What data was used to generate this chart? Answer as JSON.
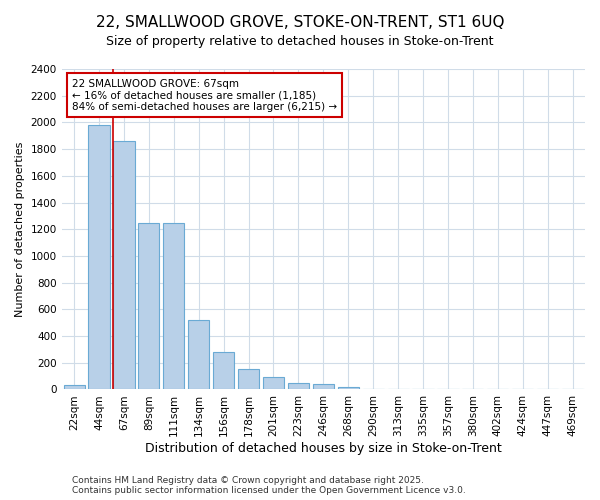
{
  "title": "22, SMALLWOOD GROVE, STOKE-ON-TRENT, ST1 6UQ",
  "subtitle": "Size of property relative to detached houses in Stoke-on-Trent",
  "xlabel": "Distribution of detached houses by size in Stoke-on-Trent",
  "ylabel": "Number of detached properties",
  "categories": [
    "22sqm",
    "44sqm",
    "67sqm",
    "89sqm",
    "111sqm",
    "134sqm",
    "156sqm",
    "178sqm",
    "201sqm",
    "223sqm",
    "246sqm",
    "268sqm",
    "290sqm",
    "313sqm",
    "335sqm",
    "357sqm",
    "380sqm",
    "402sqm",
    "424sqm",
    "447sqm",
    "469sqm"
  ],
  "values": [
    30,
    1980,
    1860,
    1250,
    1250,
    520,
    280,
    150,
    90,
    50,
    40,
    20,
    0,
    0,
    0,
    0,
    0,
    0,
    0,
    0,
    0
  ],
  "bar_color": "#b8d0e8",
  "bar_edge_color": "#6aaad4",
  "highlight_bar_index": 2,
  "highlight_line_color": "#cc0000",
  "annotation_text": "22 SMALLWOOD GROVE: 67sqm\n← 16% of detached houses are smaller (1,185)\n84% of semi-detached houses are larger (6,215) →",
  "annotation_box_color": "#ffffff",
  "annotation_box_edge_color": "#cc0000",
  "ylim": [
    0,
    2400
  ],
  "yticks": [
    0,
    200,
    400,
    600,
    800,
    1000,
    1200,
    1400,
    1600,
    1800,
    2000,
    2200,
    2400
  ],
  "footnote1": "Contains HM Land Registry data © Crown copyright and database right 2025.",
  "footnote2": "Contains public sector information licensed under the Open Government Licence v3.0.",
  "bg_color": "#ffffff",
  "grid_color": "#d0dce8",
  "title_fontsize": 11,
  "subtitle_fontsize": 9,
  "xlabel_fontsize": 9,
  "ylabel_fontsize": 8,
  "tick_fontsize": 7.5,
  "annotation_fontsize": 7.5,
  "footnote_fontsize": 6.5
}
